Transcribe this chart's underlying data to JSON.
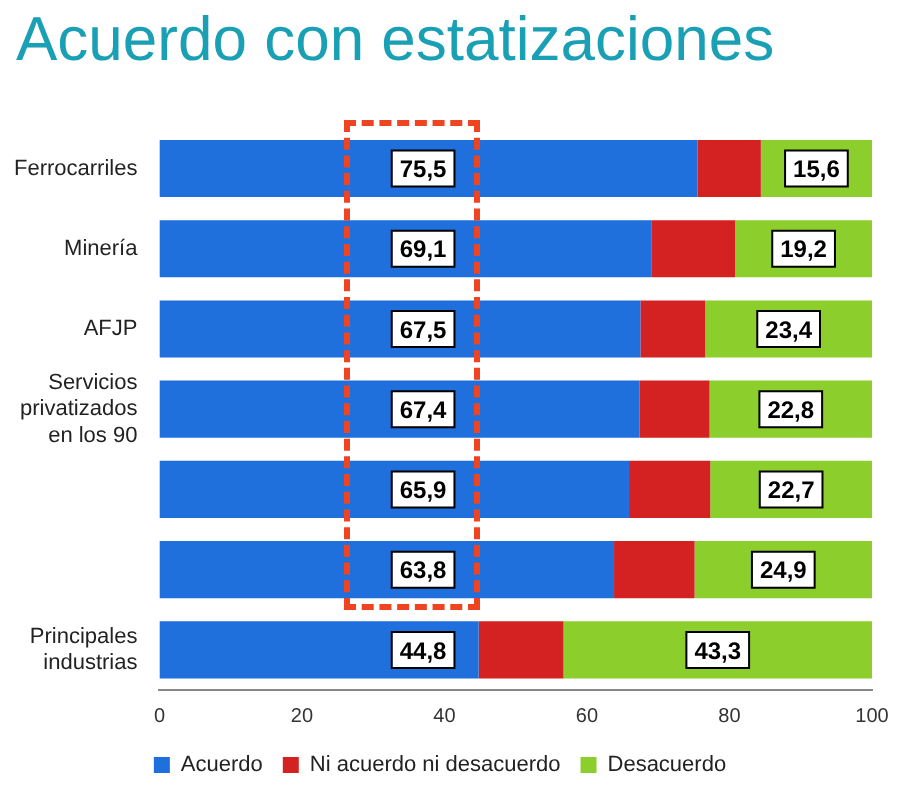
{
  "chart_data": {
    "type": "bar",
    "title": "Acuerdo con estatizaciones",
    "orientation": "horizontal",
    "stacked": true,
    "categories": [
      "Ferrocarriles",
      "Minería",
      "AFJP",
      "Servicios privatizados en los 90",
      null,
      null,
      "Principales industrias"
    ],
    "series": [
      {
        "name": "Acuerdo",
        "color": "#1f6fdc",
        "values": [
          75.5,
          69.1,
          67.5,
          67.4,
          65.9,
          63.8,
          44.8
        ],
        "value_labels": [
          "75,5",
          "69,1",
          "67,5",
          "67,4",
          "65,9",
          "63,8",
          "44,8"
        ]
      },
      {
        "name": "Ni acuerdo ni desacuerdo",
        "color": "#d42222",
        "values": [
          8.9,
          11.7,
          9.1,
          9.8,
          11.4,
          11.3,
          11.9
        ]
      },
      {
        "name": "Desacuerdo",
        "color": "#8cce2c",
        "values": [
          15.6,
          19.2,
          23.4,
          22.8,
          22.7,
          24.9,
          43.3
        ],
        "value_labels": [
          "15,6",
          "19,2",
          "23,4",
          "22,8",
          "22,7",
          "24,9",
          "43,3"
        ]
      }
    ],
    "xlim": [
      0,
      100
    ],
    "xticks": [
      0,
      20,
      40,
      60,
      80,
      100
    ],
    "grid": false,
    "legend": "bottom"
  }
}
